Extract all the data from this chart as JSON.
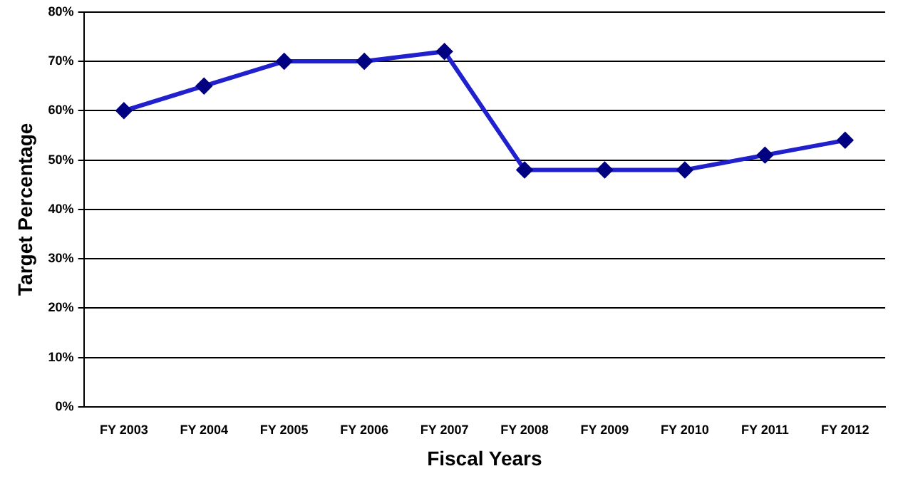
{
  "chart_data": {
    "type": "line",
    "xlabel": "Fiscal Years",
    "ylabel": "Target Percentage",
    "categories": [
      "FY 2003",
      "FY 2004",
      "FY 2005",
      "FY 2006",
      "FY 2007",
      "FY 2008",
      "FY 2009",
      "FY 2010",
      "FY 2011",
      "FY 2012"
    ],
    "series": [
      {
        "color": "#2020cc",
        "values": [
          60,
          65,
          70,
          70,
          72,
          48,
          48,
          48,
          51,
          54
        ]
      }
    ],
    "ylim": [
      0,
      80
    ],
    "yticks": [
      {
        "value": 0,
        "label": "0%"
      },
      {
        "value": 10,
        "label": "10%"
      },
      {
        "value": 20,
        "label": "20%"
      },
      {
        "value": 30,
        "label": "30%"
      },
      {
        "value": 40,
        "label": "40%"
      },
      {
        "value": 50,
        "label": "50%"
      },
      {
        "value": 60,
        "label": "60%"
      },
      {
        "value": 70,
        "label": "70%"
      },
      {
        "value": 80,
        "label": "80%"
      }
    ],
    "grid": "y",
    "legend": false,
    "marker": "diamond",
    "line_style": "solid"
  }
}
